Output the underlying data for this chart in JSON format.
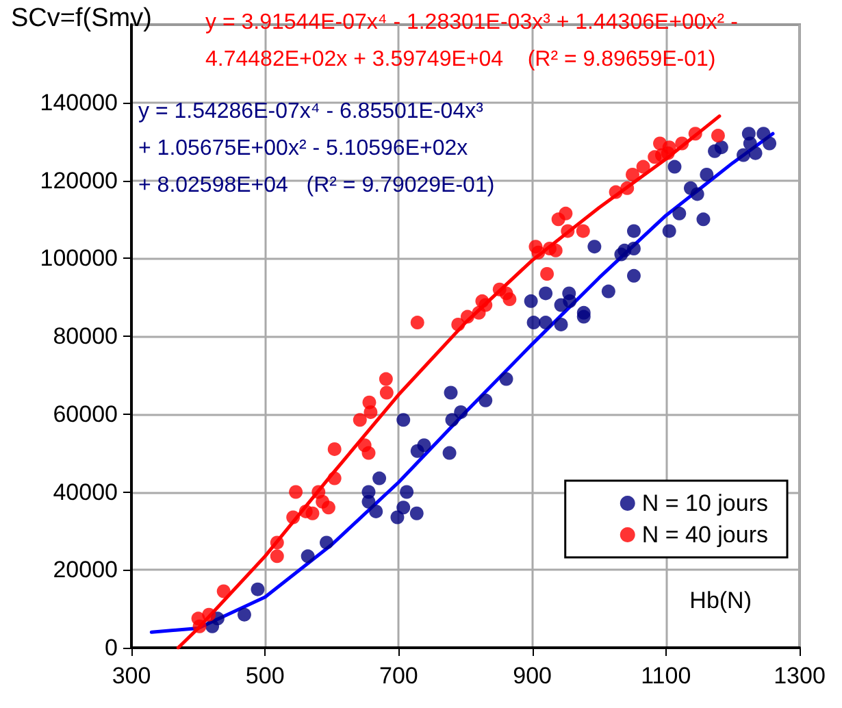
{
  "chart_data": {
    "type": "scatter",
    "ylabel": "SCv=f(Smv)",
    "xlabel": "Hb(N)",
    "annotations": [
      "y = 1.54286E-07x⁴ - 6.85501E-04x³\n+ 1.05675E+00x² - 5.10596E+02x\n+ 8.02598E+04   (R² = 9.79029E-01)",
      "y = 3.91544E-07x⁴ - 1.28301E-03x³ + 1.44306E+00x² -\n4.74482E+02x + 3.59749E+04    (R² = 9.89659E-01)"
    ],
    "xlim": [
      300,
      1300
    ],
    "xticks": [
      300,
      500,
      700,
      900,
      1100,
      1300
    ],
    "ylim": [
      0,
      160000
    ],
    "yticks": [
      0,
      20000,
      40000,
      60000,
      80000,
      100000,
      120000,
      140000
    ],
    "grid": true,
    "legend": "bottom right",
    "marker": "circle",
    "series": [
      {
        "name": "N = 10 jours",
        "color": "#000080",
        "x": [
          421,
          429,
          469,
          489,
          564,
          592,
          655,
          655,
          666,
          671,
          698,
          707,
          712,
          707,
          727,
          728,
          738,
          776,
          778,
          780,
          793,
          830,
          861,
          898,
          902,
          920,
          920,
          943,
          943,
          955,
          956,
          977,
          977,
          993,
          1014,
          1033,
          1038,
          1052,
          1052,
          1052,
          1105,
          1113,
          1120,
          1137,
          1147,
          1156,
          1161,
          1173,
          1183,
          1216,
          1224,
          1226,
          1234,
          1246,
          1255
        ],
        "values": [
          5500,
          7500,
          8500,
          15000,
          23500,
          27000,
          40000,
          37500,
          35000,
          43500,
          33500,
          36000,
          40000,
          58500,
          34500,
          50500,
          52000,
          50000,
          65500,
          58500,
          60500,
          63500,
          69000,
          89000,
          83500,
          91000,
          83500,
          88000,
          83000,
          91000,
          89000,
          86000,
          85000,
          103000,
          91500,
          101000,
          102000,
          107000,
          102500,
          95500,
          107000,
          123500,
          111500,
          118000,
          116500,
          110000,
          121500,
          127500,
          128500,
          126500,
          132000,
          129500,
          127000,
          132000,
          129500
        ]
      },
      {
        "name": "N = 40 jours",
        "color": "#ff0000",
        "x": [
          400,
          416,
          402,
          438,
          518,
          518,
          542,
          546,
          561,
          571,
          580,
          586,
          595,
          604,
          604,
          642,
          656,
          658,
          649,
          655,
          681,
          682,
          728,
          789,
          803,
          820,
          825,
          830,
          851,
          861,
          866,
          905,
          909,
          922,
          926,
          935,
          939,
          950,
          953,
          976,
          1025,
          1042,
          1050,
          1066,
          1083,
          1091,
          1094,
          1103,
          1105,
          1124,
          1144,
          1178
        ],
        "values": [
          7500,
          8500,
          5500,
          14500,
          27000,
          23500,
          33500,
          40000,
          35000,
          34500,
          40000,
          37500,
          36000,
          43500,
          51000,
          58500,
          63000,
          60500,
          52000,
          50000,
          69000,
          65500,
          83500,
          83000,
          85000,
          86000,
          89000,
          88000,
          92000,
          91000,
          89500,
          103000,
          101500,
          96000,
          102500,
          102000,
          110000,
          111500,
          107000,
          107000,
          117000,
          118000,
          121500,
          123500,
          126000,
          129500,
          126500,
          127000,
          128500,
          129500,
          132000,
          131500
        ]
      },
      {
        "type": "line",
        "marker": "none",
        "color": "#0000ff",
        "x": [
          330,
          400,
          500,
          600,
          700,
          800,
          900,
          1000,
          1100,
          1200,
          1260
        ],
        "values": [
          4000,
          5000,
          13000,
          26500,
          42500,
          60500,
          78000,
          95000,
          111000,
          124500,
          132000
        ]
      },
      {
        "type": "line",
        "marker": "none",
        "color": "#ff0000",
        "x": [
          370,
          400,
          500,
          600,
          700,
          800,
          900,
          1000,
          1100,
          1180
        ],
        "values": [
          0,
          5000,
          23500,
          44500,
          65000,
          83500,
          99500,
          113000,
          125500,
          136500
        ]
      }
    ]
  }
}
